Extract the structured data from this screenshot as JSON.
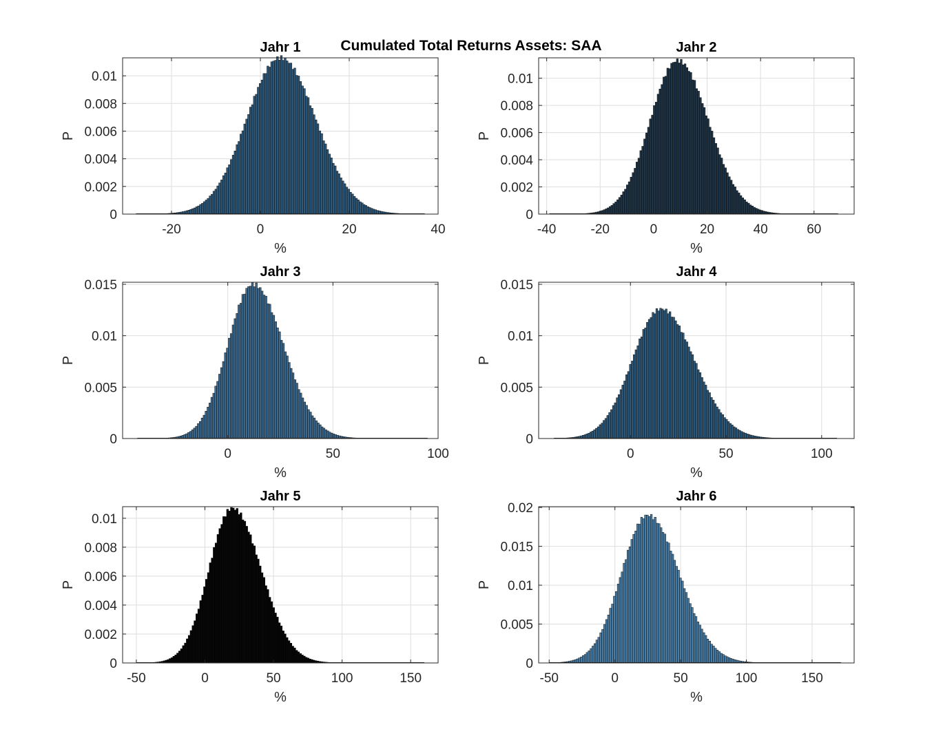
{
  "figure": {
    "suptitle": "Cumulated Total Returns Assets: SAA"
  },
  "chart_data": [
    {
      "type": "bar",
      "title": "Jahr 1",
      "xlabel": "%",
      "ylabel": "P",
      "xlim": [
        -31,
        40
      ],
      "ylim": [
        0,
        0.0113
      ],
      "xticks": [
        -20,
        0,
        20,
        40
      ],
      "xtick_labels": [
        "-20",
        "0",
        "20",
        "40"
      ],
      "yticks": [
        0,
        0.002,
        0.004,
        0.006,
        0.008,
        0.01
      ],
      "ytick_labels": [
        "0",
        "0.002",
        "0.004",
        "0.006",
        "0.008",
        "0.01"
      ],
      "grid": true,
      "bar_color": "#2f5a7b",
      "distribution": {
        "min": -28,
        "max": 37,
        "mode": 4.5,
        "peak": 0.0113,
        "sd_left": 7.6,
        "sd_right": 8.0
      }
    },
    {
      "type": "bar",
      "title": "Jahr 2",
      "xlabel": "%",
      "ylabel": "P",
      "xlim": [
        -43,
        75
      ],
      "ylim": [
        0,
        0.0115
      ],
      "xticks": [
        -40,
        -20,
        0,
        20,
        40,
        60
      ],
      "xtick_labels": [
        "-40",
        "-20",
        "0",
        "20",
        "40",
        "60"
      ],
      "yticks": [
        0,
        0.002,
        0.004,
        0.006,
        0.008,
        0.01
      ],
      "ytick_labels": [
        "0",
        "0.002",
        "0.004",
        "0.006",
        "0.008",
        "0.01"
      ],
      "grid": true,
      "bar_color": "#1f3547",
      "distribution": {
        "min": -39,
        "max": 69,
        "mode": 9,
        "peak": 0.0113,
        "sd_left": 10.3,
        "sd_right": 11.5
      }
    },
    {
      "type": "bar",
      "title": "Jahr 3",
      "xlabel": "%",
      "ylabel": "P",
      "xlim": [
        -50,
        100
      ],
      "ylim": [
        0,
        0.0152
      ],
      "xticks": [
        0,
        50,
        100
      ],
      "xtick_labels": [
        "0",
        "50",
        "100"
      ],
      "yticks": [
        0,
        0.005,
        0.01,
        0.015
      ],
      "ytick_labels": [
        "0",
        "0.005",
        "0.01",
        "0.015"
      ],
      "grid": true,
      "bar_color": "#3d6a8e",
      "distribution": {
        "min": -43,
        "max": 95,
        "mode": 12,
        "peak": 0.015,
        "sd_left": 12.0,
        "sd_right": 14.5
      }
    },
    {
      "type": "bar",
      "title": "Jahr 4",
      "xlabel": "%",
      "ylabel": "P",
      "xlim": [
        -48,
        117
      ],
      "ylim": [
        0,
        0.0152
      ],
      "xticks": [
        0,
        50,
        100
      ],
      "xtick_labels": [
        "0",
        "50",
        "100"
      ],
      "yticks": [
        0,
        0.005,
        0.01,
        0.015
      ],
      "ytick_labels": [
        "0",
        "0.005",
        "0.01",
        "0.015"
      ],
      "grid": true,
      "bar_color": "#2f5a7b",
      "distribution": {
        "min": -40,
        "max": 108,
        "mode": 16,
        "peak": 0.0126,
        "sd_left": 15.0,
        "sd_right": 17.5
      }
    },
    {
      "type": "bar",
      "title": "Jahr 5",
      "xlabel": "%",
      "ylabel": "P",
      "xlim": [
        -60,
        170
      ],
      "ylim": [
        0,
        0.0108
      ],
      "xticks": [
        -50,
        0,
        50,
        100,
        150
      ],
      "xtick_labels": [
        "-50",
        "0",
        "50",
        "100",
        "150"
      ],
      "yticks": [
        0,
        0.002,
        0.004,
        0.006,
        0.008,
        0.01
      ],
      "ytick_labels": [
        "0",
        "0.002",
        "0.004",
        "0.006",
        "0.008",
        "0.01"
      ],
      "grid": true,
      "bar_color": "#050505",
      "distribution": {
        "min": -50,
        "max": 160,
        "mode": 20,
        "peak": 0.0107,
        "sd_left": 17.0,
        "sd_right": 21.0
      }
    },
    {
      "type": "bar",
      "title": "Jahr 6",
      "xlabel": "%",
      "ylabel": "P",
      "xlim": [
        -58,
        182
      ],
      "ylim": [
        0,
        0.0201
      ],
      "xticks": [
        -50,
        0,
        50,
        100,
        150
      ],
      "xtick_labels": [
        "-50",
        "0",
        "50",
        "100",
        "150"
      ],
      "yticks": [
        0,
        0.005,
        0.01,
        0.015,
        0.02
      ],
      "ytick_labels": [
        "0",
        "0.005",
        "0.01",
        "0.015",
        "0.02"
      ],
      "grid": true,
      "bar_color": "#4a7ea6",
      "distribution": {
        "min": -50,
        "max": 172,
        "mode": 25,
        "peak": 0.019,
        "sd_left": 20.0,
        "sd_right": 24.0
      }
    }
  ]
}
